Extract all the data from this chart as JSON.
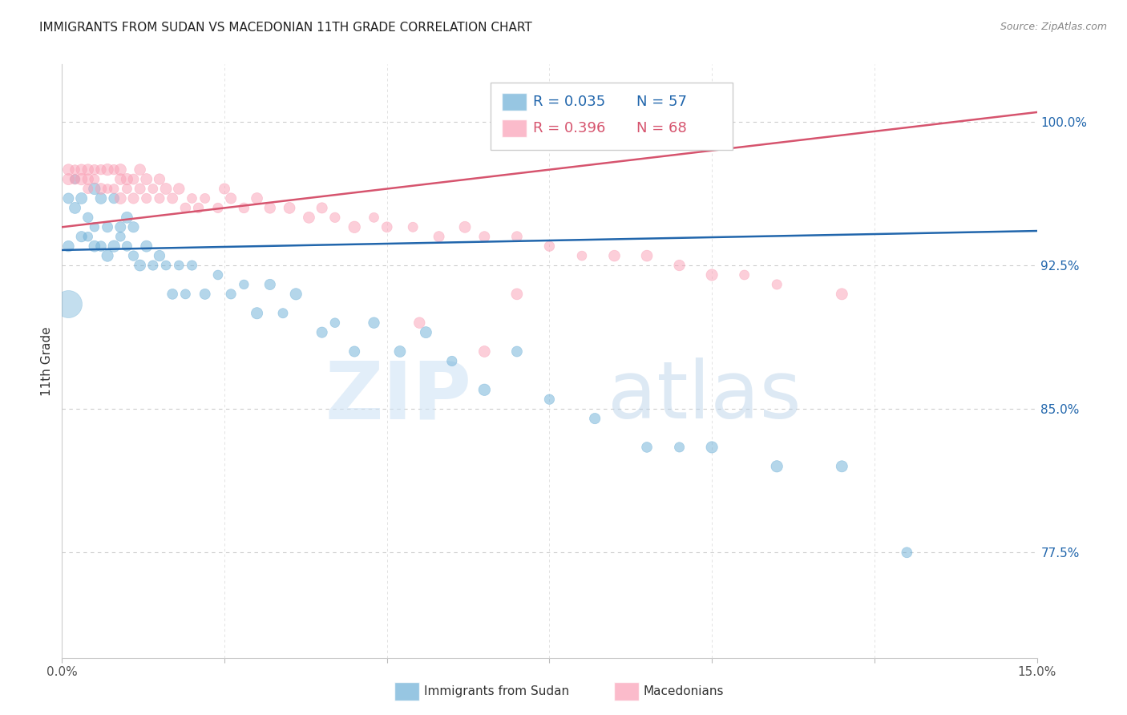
{
  "title": "IMMIGRANTS FROM SUDAN VS MACEDONIAN 11TH GRADE CORRELATION CHART",
  "source": "Source: ZipAtlas.com",
  "ylabel": "11th Grade",
  "ytick_labels": [
    "77.5%",
    "85.0%",
    "92.5%",
    "100.0%"
  ],
  "ytick_values": [
    0.775,
    0.85,
    0.925,
    1.0
  ],
  "xlim": [
    0.0,
    0.15
  ],
  "ylim": [
    0.72,
    1.03
  ],
  "legend_blue_r": "0.035",
  "legend_blue_n": "57",
  "legend_pink_r": "0.396",
  "legend_pink_n": "68",
  "blue_color": "#6baed6",
  "pink_color": "#fa9fb5",
  "blue_line_color": "#2166ac",
  "pink_line_color": "#d6546e",
  "blue_line_x0": 0.0,
  "blue_line_y0": 0.933,
  "blue_line_x1": 0.15,
  "blue_line_y1": 0.943,
  "pink_line_x0": 0.0,
  "pink_line_y0": 0.945,
  "pink_line_x1": 0.15,
  "pink_line_y1": 1.005,
  "blue_x": [
    0.001,
    0.001,
    0.002,
    0.002,
    0.003,
    0.003,
    0.004,
    0.004,
    0.005,
    0.005,
    0.005,
    0.006,
    0.006,
    0.007,
    0.007,
    0.008,
    0.008,
    0.009,
    0.009,
    0.01,
    0.01,
    0.011,
    0.011,
    0.012,
    0.013,
    0.014,
    0.015,
    0.016,
    0.017,
    0.018,
    0.019,
    0.02,
    0.022,
    0.024,
    0.026,
    0.028,
    0.03,
    0.032,
    0.034,
    0.036,
    0.04,
    0.042,
    0.045,
    0.048,
    0.052,
    0.056,
    0.06,
    0.065,
    0.07,
    0.075,
    0.082,
    0.09,
    0.095,
    0.1,
    0.11,
    0.12,
    0.13
  ],
  "blue_y": [
    0.935,
    0.96,
    0.955,
    0.97,
    0.96,
    0.94,
    0.95,
    0.94,
    0.965,
    0.945,
    0.935,
    0.96,
    0.935,
    0.945,
    0.93,
    0.96,
    0.935,
    0.945,
    0.94,
    0.95,
    0.935,
    0.945,
    0.93,
    0.925,
    0.935,
    0.925,
    0.93,
    0.925,
    0.91,
    0.925,
    0.91,
    0.925,
    0.91,
    0.92,
    0.91,
    0.915,
    0.9,
    0.915,
    0.9,
    0.91,
    0.89,
    0.895,
    0.88,
    0.895,
    0.88,
    0.89,
    0.875,
    0.86,
    0.88,
    0.855,
    0.845,
    0.83,
    0.83,
    0.83,
    0.82,
    0.82,
    0.775
  ],
  "blue_big": [
    0.001
  ],
  "blue_big_y": [
    0.905
  ],
  "pink_x": [
    0.001,
    0.001,
    0.002,
    0.002,
    0.003,
    0.003,
    0.004,
    0.004,
    0.004,
    0.005,
    0.005,
    0.006,
    0.006,
    0.007,
    0.007,
    0.008,
    0.008,
    0.009,
    0.009,
    0.009,
    0.01,
    0.01,
    0.011,
    0.011,
    0.012,
    0.012,
    0.013,
    0.013,
    0.014,
    0.015,
    0.015,
    0.016,
    0.017,
    0.018,
    0.019,
    0.02,
    0.021,
    0.022,
    0.024,
    0.026,
    0.028,
    0.03,
    0.032,
    0.035,
    0.038,
    0.04,
    0.042,
    0.045,
    0.048,
    0.05,
    0.054,
    0.058,
    0.062,
    0.065,
    0.07,
    0.075,
    0.08,
    0.085,
    0.09,
    0.095,
    0.1,
    0.105,
    0.11,
    0.12,
    0.055,
    0.025,
    0.07,
    0.065
  ],
  "pink_y": [
    0.975,
    0.97,
    0.975,
    0.97,
    0.975,
    0.97,
    0.975,
    0.97,
    0.965,
    0.975,
    0.97,
    0.975,
    0.965,
    0.975,
    0.965,
    0.975,
    0.965,
    0.975,
    0.97,
    0.96,
    0.97,
    0.965,
    0.97,
    0.96,
    0.965,
    0.975,
    0.97,
    0.96,
    0.965,
    0.97,
    0.96,
    0.965,
    0.96,
    0.965,
    0.955,
    0.96,
    0.955,
    0.96,
    0.955,
    0.96,
    0.955,
    0.96,
    0.955,
    0.955,
    0.95,
    0.955,
    0.95,
    0.945,
    0.95,
    0.945,
    0.945,
    0.94,
    0.945,
    0.94,
    0.94,
    0.935,
    0.93,
    0.93,
    0.93,
    0.925,
    0.92,
    0.92,
    0.915,
    0.91,
    0.895,
    0.965,
    0.91,
    0.88
  ]
}
